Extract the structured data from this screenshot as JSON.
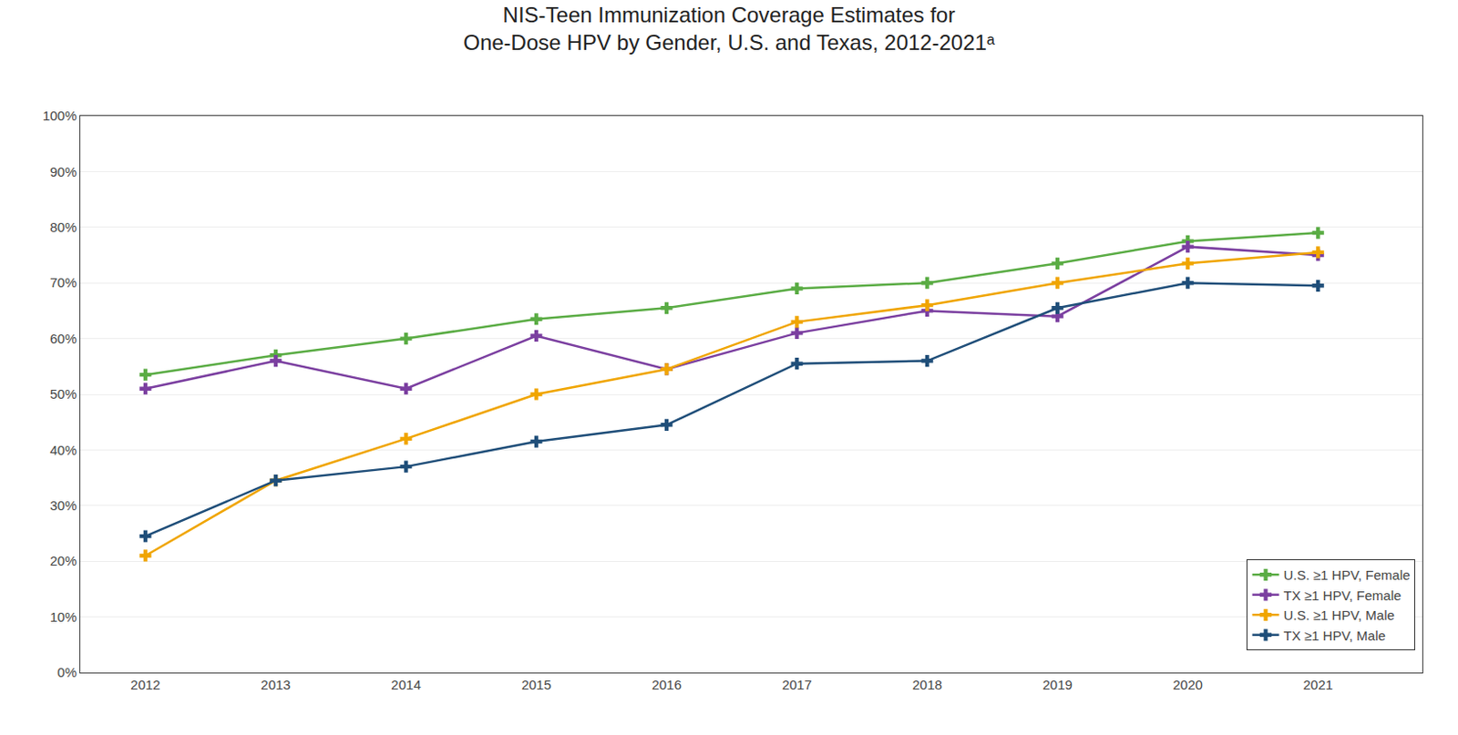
{
  "chart_data": {
    "type": "line",
    "title": "NIS-Teen Immunization Coverage Estimates for\nOne-Dose HPV by Gender, U.S. and Texas, 2012-2021ᵃ",
    "x": [
      2012,
      2013,
      2014,
      2015,
      2016,
      2017,
      2018,
      2019,
      2020,
      2021
    ],
    "series": [
      {
        "name": "U.S. ≥1 HPV, Female",
        "color": "#5aac44",
        "values": [
          0.535,
          0.57,
          0.6,
          0.635,
          0.655,
          0.69,
          0.7,
          0.735,
          0.775,
          0.79
        ]
      },
      {
        "name": "TX ≥1 HPV, Female",
        "color": "#7b3fa0",
        "values": [
          0.51,
          0.56,
          0.51,
          0.605,
          0.545,
          0.61,
          0.65,
          0.64,
          0.765,
          0.75
        ]
      },
      {
        "name": "U.S. ≥1 HPV, Male",
        "color": "#f0a500",
        "values": [
          0.21,
          0.345,
          0.42,
          0.5,
          0.545,
          0.63,
          0.66,
          0.7,
          0.735,
          0.755
        ]
      },
      {
        "name": "TX ≥1 HPV, Male",
        "color": "#1f4e79",
        "values": [
          0.245,
          0.345,
          0.37,
          0.415,
          0.445,
          0.555,
          0.56,
          0.655,
          0.7,
          0.695
        ]
      }
    ],
    "xlim": [
      2011.5,
      2021.8
    ],
    "xticks": [
      2012,
      2013,
      2014,
      2015,
      2016,
      2017,
      2018,
      2019,
      2020,
      2021
    ],
    "ylim": [
      0.0,
      1.0
    ],
    "yticks": [
      {
        "value": 0.0,
        "label": "0%"
      },
      {
        "value": 0.1,
        "label": "10%"
      },
      {
        "value": 0.2,
        "label": "20%"
      },
      {
        "value": 0.3,
        "label": "30%"
      },
      {
        "value": 0.4,
        "label": "40%"
      },
      {
        "value": 0.5,
        "label": "50%"
      },
      {
        "value": 0.6,
        "label": "60%"
      },
      {
        "value": 0.7,
        "label": "70%"
      },
      {
        "value": 0.8,
        "label": "80%"
      },
      {
        "value": 0.9,
        "label": "90%"
      },
      {
        "value": 1.0,
        "label": "100%"
      }
    ],
    "grid": true,
    "legend": "lower right",
    "marker": "plus"
  }
}
